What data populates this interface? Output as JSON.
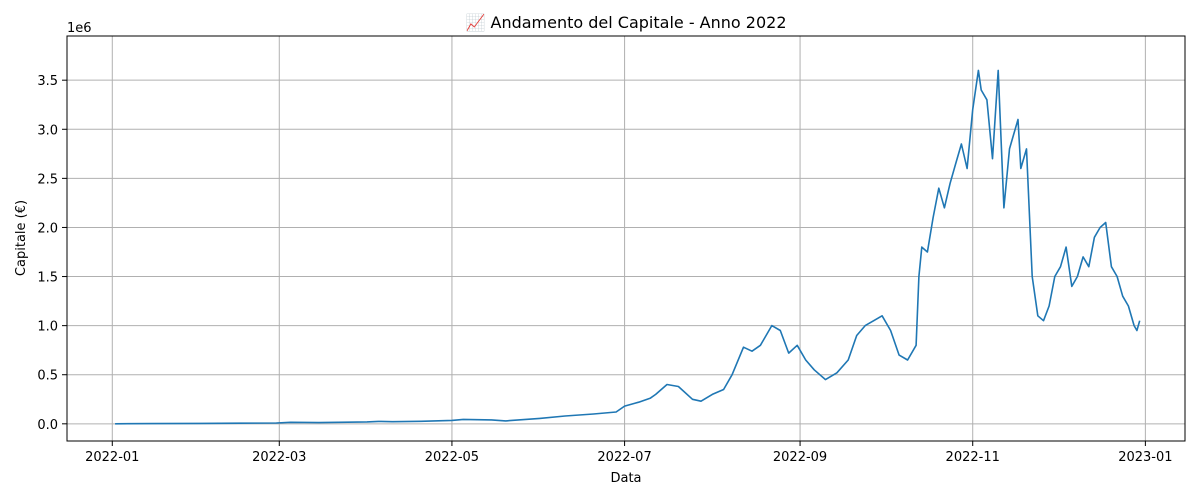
{
  "chart_data": {
    "type": "line",
    "title": "📈 Andamento del Capitale - Anno 2022",
    "xlabel": "Data",
    "ylabel": "Capitale (€)",
    "y_offset_label": "1e6",
    "ylim": [
      -175000,
      3950000
    ],
    "xlim": [
      "2021-12-16",
      "2023-01-15"
    ],
    "grid": true,
    "line_color": "#1f77b4",
    "x_ticks": [
      "2022-01-01",
      "2022-03-01",
      "2022-05-01",
      "2022-07-01",
      "2022-09-01",
      "2022-11-01",
      "2023-01-01"
    ],
    "x_tick_labels": [
      "2022-01",
      "2022-03",
      "2022-05",
      "2022-07",
      "2022-09",
      "2022-11",
      "2023-01"
    ],
    "y_ticks": [
      0,
      500000,
      1000000,
      1500000,
      2000000,
      2500000,
      3000000,
      3500000
    ],
    "y_tick_labels": [
      "0.0",
      "0.5",
      "1.0",
      "1.5",
      "2.0",
      "2.5",
      "3.0",
      "3.5"
    ],
    "series": [
      {
        "x": [
          "2022-01-02",
          "2022-01-15",
          "2022-02-01",
          "2022-02-15",
          "2022-02-28",
          "2022-03-05",
          "2022-03-15",
          "2022-04-01",
          "2022-04-05",
          "2022-04-10",
          "2022-04-20",
          "2022-05-01",
          "2022-05-05",
          "2022-05-15",
          "2022-05-20",
          "2022-06-01",
          "2022-06-10",
          "2022-06-20",
          "2022-06-28",
          "2022-07-01",
          "2022-07-06",
          "2022-07-10",
          "2022-07-12",
          "2022-07-16",
          "2022-07-20",
          "2022-07-25",
          "2022-07-28",
          "2022-08-01",
          "2022-08-05",
          "2022-08-08",
          "2022-08-12",
          "2022-08-15",
          "2022-08-18",
          "2022-08-22",
          "2022-08-25",
          "2022-08-28",
          "2022-08-31",
          "2022-09-03",
          "2022-09-06",
          "2022-09-10",
          "2022-09-14",
          "2022-09-18",
          "2022-09-21",
          "2022-09-24",
          "2022-09-27",
          "2022-09-30",
          "2022-10-03",
          "2022-10-06",
          "2022-10-09",
          "2022-10-12",
          "2022-10-13",
          "2022-10-14",
          "2022-10-16",
          "2022-10-18",
          "2022-10-20",
          "2022-10-22",
          "2022-10-24",
          "2022-10-26",
          "2022-10-28",
          "2022-10-30",
          "2022-11-01",
          "2022-11-03",
          "2022-11-04",
          "2022-11-06",
          "2022-11-08",
          "2022-11-10",
          "2022-11-12",
          "2022-11-14",
          "2022-11-15",
          "2022-11-17",
          "2022-11-18",
          "2022-11-20",
          "2022-11-22",
          "2022-11-24",
          "2022-11-26",
          "2022-11-28",
          "2022-11-30",
          "2022-12-02",
          "2022-12-04",
          "2022-12-06",
          "2022-12-08",
          "2022-12-10",
          "2022-12-12",
          "2022-12-14",
          "2022-12-16",
          "2022-12-18",
          "2022-12-20",
          "2022-12-22",
          "2022-12-24",
          "2022-12-26",
          "2022-12-28",
          "2022-12-29",
          "2022-12-30"
        ],
        "y": [
          0,
          2000,
          4000,
          6000,
          8000,
          15000,
          12000,
          20000,
          25000,
          22000,
          26000,
          35000,
          45000,
          40000,
          30000,
          55000,
          80000,
          100000,
          120000,
          180000,
          220000,
          260000,
          300000,
          400000,
          380000,
          250000,
          230000,
          300000,
          350000,
          500000,
          780000,
          740000,
          800000,
          1000000,
          950000,
          720000,
          800000,
          650000,
          550000,
          450000,
          520000,
          650000,
          900000,
          1000000,
          1050000,
          1100000,
          950000,
          700000,
          650000,
          800000,
          1500000,
          1800000,
          1750000,
          2100000,
          2400000,
          2200000,
          2450000,
          2650000,
          2850000,
          2600000,
          3200000,
          3600000,
          3400000,
          3300000,
          2700000,
          3600000,
          2200000,
          2800000,
          2900000,
          3100000,
          2600000,
          2800000,
          1500000,
          1100000,
          1050000,
          1200000,
          1500000,
          1600000,
          1800000,
          1400000,
          1500000,
          1700000,
          1600000,
          1900000,
          2000000,
          2050000,
          1600000,
          1500000,
          1300000,
          1200000,
          1000000,
          950000,
          1050000
        ]
      }
    ]
  }
}
